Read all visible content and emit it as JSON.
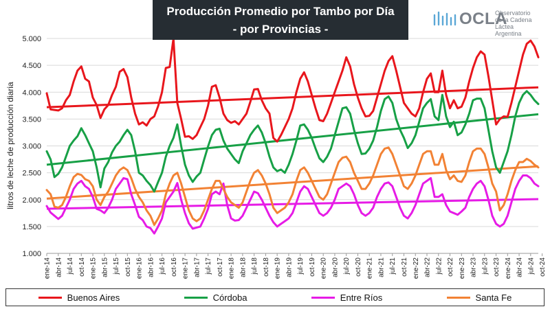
{
  "header": {
    "title_line1": "Producción Promedio por Tambo por Día",
    "title_line2": "- por Provincias -"
  },
  "logo": {
    "word": "OCLA",
    "line1": "Observatorio",
    "line2": "de la Cadena Láctea",
    "line3": "Argentina",
    "icon": "ocla-bars-icon"
  },
  "chart_data": {
    "type": "line",
    "ylabel": "litros de leche de producción diaria",
    "ylim": [
      1000,
      5000
    ],
    "yticks": [
      1000,
      1500,
      2000,
      2500,
      3000,
      3500,
      4000,
      4500,
      5000
    ],
    "ytick_labels": [
      "1.000",
      "1.500",
      "2.000",
      "2.500",
      "3.000",
      "3.500",
      "4.000",
      "4.500",
      "5.000"
    ],
    "x_start": "2014-01",
    "x_end": "2024-12",
    "xtick_labels": [
      "ene-14",
      "abr-14",
      "jul-14",
      "oct-14",
      "ene-15",
      "abr-15",
      "jul-15",
      "oct-15",
      "ene-16",
      "abr-16",
      "jul-16",
      "oct-16",
      "ene-17",
      "abr-17",
      "jul-17",
      "oct-17",
      "ene-18",
      "abr-18",
      "jul-18",
      "oct-18",
      "ene-19",
      "abr-19",
      "jul-19",
      "oct-19",
      "ene-20",
      "abr-20",
      "jul-20",
      "oct-20",
      "ene-21",
      "abr-21",
      "jul-21",
      "oct-21",
      "ene-22",
      "abr-22",
      "jul-22",
      "oct-22",
      "ene-23",
      "abr-23",
      "jul-23",
      "oct-23",
      "ene-24",
      "abr-24",
      "jul-24",
      "oct-24"
    ],
    "grid": "horizontal",
    "legend_position": "bottom",
    "series": [
      {
        "name": "Buenos Aires",
        "color": "#e8161c",
        "values": [
          3980,
          3680,
          3670,
          3660,
          3700,
          3850,
          3950,
          4200,
          4400,
          4480,
          4250,
          4200,
          3900,
          3760,
          3520,
          3680,
          3760,
          3950,
          4100,
          4380,
          4430,
          4280,
          3900,
          3600,
          3400,
          3440,
          3380,
          3500,
          3550,
          3740,
          4000,
          4450,
          4470,
          5000,
          3800,
          3500,
          3170,
          3180,
          3130,
          3200,
          3350,
          3500,
          3750,
          4100,
          4130,
          3900,
          3600,
          3480,
          3430,
          3460,
          3400,
          3500,
          3600,
          3820,
          4050,
          4060,
          3850,
          3700,
          3600,
          3150,
          3080,
          3200,
          3350,
          3500,
          3700,
          4000,
          4250,
          4370,
          4200,
          3950,
          3700,
          3480,
          3460,
          3600,
          3800,
          4000,
          4200,
          4400,
          4650,
          4480,
          4150,
          3900,
          3700,
          3550,
          3560,
          3650,
          3900,
          4150,
          4400,
          4580,
          4670,
          4400,
          4100,
          3800,
          3700,
          3600,
          3550,
          3700,
          4000,
          4250,
          4350,
          4000,
          4000,
          4400,
          3950,
          3700,
          3850,
          3700,
          3730,
          3900,
          4200,
          4450,
          4650,
          4760,
          4700,
          4300,
          3850,
          3400,
          3500,
          3550,
          3540,
          3800,
          4100,
          4400,
          4700,
          4900,
          4960,
          4850,
          4650
        ]
      },
      {
        "name": "Córdoba",
        "color": "#17a046",
        "values": [
          2900,
          2750,
          2420,
          2480,
          2600,
          2800,
          3000,
          3100,
          3180,
          3330,
          3200,
          3050,
          2900,
          2600,
          2230,
          2580,
          2700,
          2880,
          3000,
          3080,
          3200,
          3300,
          3200,
          2900,
          2500,
          2450,
          2350,
          2270,
          2150,
          2330,
          2500,
          2800,
          3000,
          3150,
          3400,
          3000,
          2650,
          2450,
          2330,
          2430,
          2500,
          2750,
          2990,
          3200,
          3300,
          3320,
          3100,
          2950,
          2850,
          2750,
          2680,
          2900,
          3050,
          3200,
          3300,
          3380,
          3250,
          3050,
          2800,
          2600,
          2530,
          2560,
          2500,
          2650,
          2850,
          3100,
          3380,
          3400,
          3300,
          3150,
          2950,
          2770,
          2700,
          2800,
          2950,
          3200,
          3450,
          3700,
          3720,
          3600,
          3300,
          3050,
          2850,
          2860,
          2950,
          3100,
          3350,
          3650,
          3870,
          3920,
          3800,
          3500,
          3300,
          3150,
          2960,
          3050,
          3200,
          3450,
          3700,
          3800,
          3870,
          3550,
          3480,
          3950,
          3550,
          3350,
          3450,
          3200,
          3250,
          3400,
          3600,
          3850,
          3880,
          3880,
          3700,
          3300,
          2900,
          2600,
          2500,
          2700,
          2900,
          3200,
          3550,
          3800,
          3950,
          4020,
          3950,
          3850,
          3780
        ]
      },
      {
        "name": "Entre Ríos",
        "color": "#e61be6",
        "values": [
          1880,
          1760,
          1700,
          1640,
          1700,
          1850,
          2000,
          2200,
          2300,
          2350,
          2250,
          2200,
          2050,
          1830,
          1800,
          1750,
          1850,
          2000,
          2200,
          2300,
          2400,
          2380,
          2100,
          1900,
          1680,
          1620,
          1500,
          1470,
          1370,
          1500,
          1650,
          1950,
          2050,
          2150,
          2310,
          2000,
          1750,
          1560,
          1460,
          1480,
          1500,
          1650,
          1830,
          2100,
          2150,
          2100,
          2300,
          1900,
          1650,
          1610,
          1620,
          1700,
          1850,
          2000,
          2150,
          2120,
          2000,
          1850,
          1700,
          1580,
          1500,
          1550,
          1600,
          1650,
          1750,
          1950,
          2150,
          2250,
          2200,
          2050,
          1900,
          1750,
          1700,
          1750,
          1850,
          2000,
          2200,
          2250,
          2300,
          2250,
          2100,
          1900,
          1750,
          1700,
          1750,
          1850,
          2050,
          2200,
          2300,
          2320,
          2250,
          2050,
          1850,
          1700,
          1650,
          1750,
          1900,
          2100,
          2300,
          2350,
          2400,
          2050,
          2050,
          2100,
          1900,
          1780,
          1750,
          1720,
          1780,
          1850,
          2050,
          2200,
          2300,
          2350,
          2250,
          2000,
          1700,
          1550,
          1500,
          1550,
          1700,
          1950,
          2200,
          2350,
          2450,
          2450,
          2400,
          2300,
          2250
        ]
      },
      {
        "name": "Santa Fe",
        "color": "#f28234",
        "values": [
          2180,
          2100,
          1870,
          1850,
          1900,
          2050,
          2250,
          2420,
          2480,
          2460,
          2380,
          2350,
          2250,
          2000,
          1900,
          2050,
          2150,
          2300,
          2450,
          2550,
          2600,
          2550,
          2400,
          2200,
          2050,
          1950,
          1800,
          1700,
          1530,
          1650,
          1800,
          2100,
          2300,
          2450,
          2500,
          2300,
          2050,
          1800,
          1650,
          1600,
          1650,
          1800,
          2000,
          2200,
          2350,
          2350,
          2200,
          2050,
          1950,
          1900,
          1850,
          1950,
          2150,
          2350,
          2500,
          2550,
          2450,
          2300,
          2100,
          1850,
          1750,
          1800,
          1850,
          1950,
          2100,
          2350,
          2550,
          2600,
          2500,
          2350,
          2200,
          2050,
          2000,
          2100,
          2300,
          2500,
          2700,
          2780,
          2800,
          2700,
          2500,
          2350,
          2200,
          2200,
          2300,
          2450,
          2650,
          2850,
          2950,
          2970,
          2850,
          2650,
          2450,
          2250,
          2200,
          2300,
          2450,
          2650,
          2850,
          2900,
          2900,
          2650,
          2650,
          2850,
          2550,
          2380,
          2450,
          2350,
          2330,
          2450,
          2700,
          2900,
          2950,
          2950,
          2850,
          2600,
          2300,
          2150,
          1800,
          1900,
          2100,
          2350,
          2550,
          2700,
          2700,
          2760,
          2720,
          2650,
          2600
        ]
      }
    ],
    "trendlines": [
      {
        "name": "Buenos Aires",
        "color": "#e8161c",
        "start": 3720,
        "end": 4090
      },
      {
        "name": "Córdoba",
        "color": "#17a046",
        "start": 2650,
        "end": 3590
      },
      {
        "name": "Entre Ríos",
        "color": "#e61be6",
        "start": 1830,
        "end": 2010
      },
      {
        "name": "Santa Fe",
        "color": "#f28234",
        "start": 2020,
        "end": 2620
      }
    ]
  }
}
